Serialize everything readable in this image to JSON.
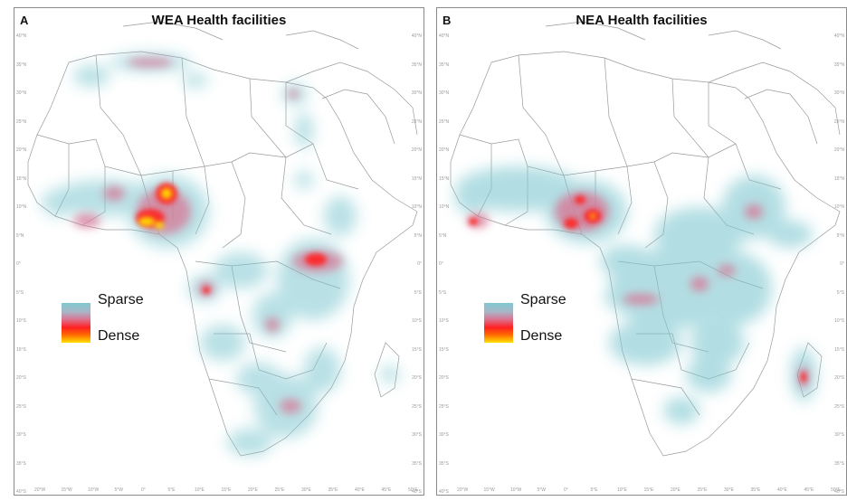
{
  "panels": [
    {
      "letter": "A",
      "title": "WEA Health facilities",
      "legend": {
        "sparse": "Sparse",
        "dense": "Dense"
      }
    },
    {
      "letter": "B",
      "title": "NEA Health facilities",
      "legend": {
        "sparse": "Sparse",
        "dense": "Dense"
      }
    }
  ],
  "colors": {
    "sparse": "#7fc8d0",
    "mid": "#d87896",
    "dense": "#ff2020",
    "peak": "#ffe000",
    "border": "#8a8a8a"
  },
  "lat_ticks": [
    "40°N",
    "35°N",
    "30°N",
    "25°N",
    "20°N",
    "15°N",
    "10°N",
    "5°N",
    "0°",
    "5°S",
    "10°S",
    "15°S",
    "20°S",
    "25°S",
    "30°S",
    "35°S",
    "40°S"
  ],
  "lon_ticks": [
    "20°W",
    "15°W",
    "10°W",
    "5°W",
    "0°",
    "5°E",
    "10°E",
    "15°E",
    "20°E",
    "25°E",
    "30°E",
    "35°E",
    "40°E",
    "45°E",
    "50°E"
  ]
}
